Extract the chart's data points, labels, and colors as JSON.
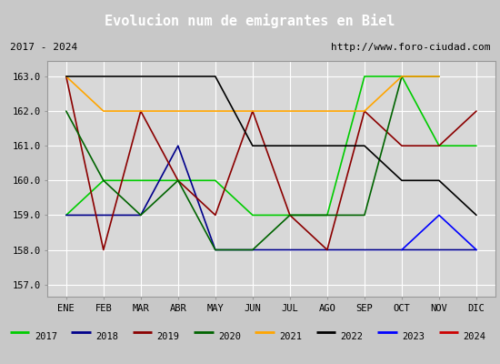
{
  "title": "Evolucion num de emigrantes en Biel",
  "subtitle_left": "2017 - 2024",
  "subtitle_right": "http://www.foro-ciudad.com",
  "months": [
    "ENE",
    "FEB",
    "MAR",
    "ABR",
    "MAY",
    "JUN",
    "JUL",
    "AGO",
    "SEP",
    "OCT",
    "NOV",
    "DIC"
  ],
  "ylim": [
    156.65,
    163.45
  ],
  "yticks": [
    157.0,
    158.0,
    159.0,
    160.0,
    161.0,
    162.0,
    163.0
  ],
  "series": {
    "2017": {
      "color": "#00cc00",
      "data": [
        159.0,
        160.0,
        160.0,
        160.0,
        160.0,
        159.0,
        159.0,
        159.0,
        163.0,
        163.0,
        161.0,
        161.0
      ]
    },
    "2018": {
      "color": "#00008b",
      "data": [
        159.0,
        159.0,
        159.0,
        161.0,
        158.0,
        158.0,
        158.0,
        158.0,
        158.0,
        158.0,
        158.0,
        158.0
      ]
    },
    "2019": {
      "color": "#8b0000",
      "data": [
        163.0,
        158.0,
        162.0,
        160.0,
        159.0,
        162.0,
        159.0,
        158.0,
        162.0,
        161.0,
        161.0,
        162.0
      ]
    },
    "2020": {
      "color": "#006400",
      "data": [
        162.0,
        160.0,
        159.0,
        160.0,
        158.0,
        158.0,
        159.0,
        159.0,
        159.0,
        163.0,
        163.0,
        null
      ]
    },
    "2021": {
      "color": "#ffa500",
      "data": [
        163.0,
        162.0,
        162.0,
        162.0,
        162.0,
        162.0,
        162.0,
        162.0,
        162.0,
        163.0,
        163.0,
        null
      ]
    },
    "2022": {
      "color": "#000000",
      "data": [
        163.0,
        163.0,
        163.0,
        163.0,
        163.0,
        161.0,
        161.0,
        161.0,
        161.0,
        160.0,
        160.0,
        159.0
      ]
    },
    "2023": {
      "color": "#0000ff",
      "data": [
        null,
        null,
        null,
        null,
        null,
        null,
        null,
        null,
        null,
        158.0,
        159.0,
        158.0
      ]
    },
    "2024": {
      "color": "#cc0000",
      "data": [
        null,
        null,
        null,
        null,
        null,
        null,
        null,
        null,
        null,
        null,
        null,
        162.0
      ]
    }
  },
  "title_bg_color": "#4d9fe0",
  "plot_bg_color": "#d8d8d8",
  "fig_bg_color": "#c8c8c8",
  "grid_color": "#ffffff",
  "subtitle_bg": "#d0d0d0",
  "legend_bg": "#e8e8e8"
}
